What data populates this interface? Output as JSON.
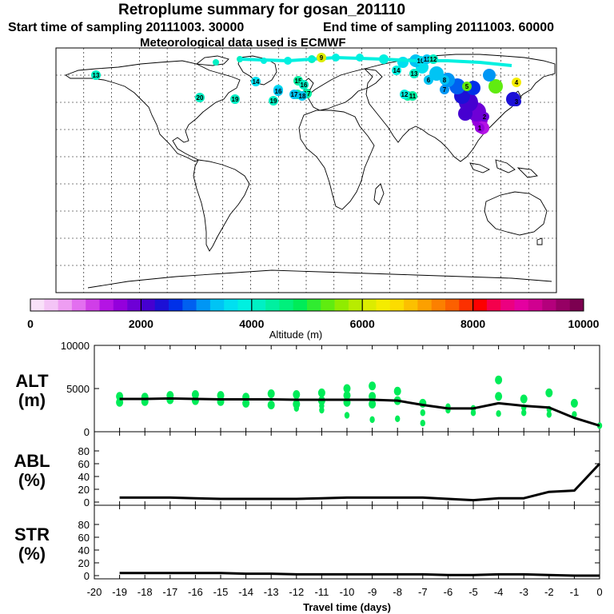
{
  "header": {
    "title": "Retroplume summary for gosan_201110",
    "start_label": "Start time of sampling 20111003. 30000",
    "end_label": "End time of sampling 20111003. 60000",
    "met_label": "Meteorological data used is ECMWF"
  },
  "colorbar": {
    "label": "Altitude (m)",
    "ticks": [
      "0",
      "2000",
      "4000",
      "6000",
      "8000",
      "10000"
    ],
    "colors": [
      "#f9e1f9",
      "#f4c4f6",
      "#ee9df2",
      "#e36ff0",
      "#d03ee8",
      "#b414e4",
      "#9400dc",
      "#6e00d6",
      "#4600d0",
      "#1c10d6",
      "#0030e8",
      "#0060f0",
      "#0096f4",
      "#00c4f4",
      "#00e0f0",
      "#00f0e0",
      "#00f0c4",
      "#00f0a0",
      "#00f07c",
      "#00ec58",
      "#30ec30",
      "#60ec10",
      "#90ec00",
      "#b8ec00",
      "#dcec00",
      "#f4ec00",
      "#fcdc00",
      "#fcc000",
      "#fca000",
      "#fc8000",
      "#fc6000",
      "#fc3000",
      "#fc0000",
      "#f4004c",
      "#ec0080",
      "#e400a0",
      "#d00090",
      "#b4007c",
      "#960064",
      "#7c0050"
    ]
  },
  "map": {
    "trajectory_labels": [
      {
        "t": "9",
        "c": "#dcec00"
      },
      {
        "t": "15",
        "c": "#00f0a0"
      },
      {
        "t": "16",
        "c": "#00f0c4"
      },
      {
        "t": "17",
        "c": "#00f0a0"
      },
      {
        "t": "18",
        "c": "#00f0a0"
      },
      {
        "t": "10",
        "c": "#00e0f0"
      },
      {
        "t": "11",
        "c": "#00c4f4"
      },
      {
        "t": "12",
        "c": "#00f0c4"
      },
      {
        "t": "13",
        "c": "#00f0c4"
      },
      {
        "t": "14",
        "c": "#00f0e0"
      },
      {
        "t": "8",
        "c": "#00c4f4"
      },
      {
        "t": "5",
        "c": "#60ec10"
      },
      {
        "t": "7",
        "c": "#0096f4"
      },
      {
        "t": "4",
        "c": "#f4ec00"
      },
      {
        "t": "3",
        "c": "#1c10d6"
      },
      {
        "t": "2",
        "c": "#6e00d6"
      },
      {
        "t": "1",
        "c": "#9400dc"
      },
      {
        "t": "6",
        "c": "#00c4f4"
      },
      {
        "t": "13",
        "c": "#00f0c4"
      },
      {
        "t": "19",
        "c": "#00f0c4"
      },
      {
        "t": "14",
        "c": "#00e0f0"
      },
      {
        "t": "15",
        "c": "#00e0f0"
      },
      {
        "t": "16",
        "c": "#00c4f4"
      },
      {
        "t": "17",
        "c": "#00c4f4"
      },
      {
        "t": "18",
        "c": "#00c4f4"
      },
      {
        "t": "19",
        "c": "#00f0c4"
      },
      {
        "t": "20",
        "c": "#00f0c4"
      },
      {
        "t": "10",
        "c": "#00f0a0"
      },
      {
        "t": "11",
        "c": "#00f0a0"
      },
      {
        "t": "12",
        "c": "#00f0e0"
      }
    ]
  },
  "chart_data": [
    {
      "type": "scatter",
      "name": "ALT",
      "ylabel": "ALT (m)",
      "ylabel_parts": [
        "ALT",
        "(m)"
      ],
      "ylim": [
        0,
        10000
      ],
      "yticks": [
        "0",
        "5000",
        "10000"
      ],
      "xlim": [
        -20,
        0
      ],
      "line": {
        "x": [
          -19,
          -18,
          -17,
          -16,
          -15,
          -14,
          -13,
          -12,
          -11,
          -10,
          -9,
          -8,
          -7,
          -6,
          -5,
          -4,
          -3,
          -2,
          -1,
          0
        ],
        "y": [
          3800,
          3800,
          3850,
          3800,
          3750,
          3750,
          3750,
          3700,
          3700,
          3700,
          3700,
          3600,
          3100,
          2700,
          2700,
          3300,
          3000,
          2800,
          1600,
          700
        ]
      },
      "points": [
        {
          "x": -19,
          "y": 4100
        },
        {
          "x": -19,
          "y": 3400
        },
        {
          "x": -18,
          "y": 4000
        },
        {
          "x": -18,
          "y": 3500
        },
        {
          "x": -17,
          "y": 4200
        },
        {
          "x": -17,
          "y": 3700
        },
        {
          "x": -16,
          "y": 4300
        },
        {
          "x": -16,
          "y": 3600
        },
        {
          "x": -15,
          "y": 4200
        },
        {
          "x": -15,
          "y": 3500
        },
        {
          "x": -14,
          "y": 4000
        },
        {
          "x": -14,
          "y": 3300
        },
        {
          "x": -13,
          "y": 4400
        },
        {
          "x": -13,
          "y": 3100
        },
        {
          "x": -12,
          "y": 4300
        },
        {
          "x": -12,
          "y": 3200
        },
        {
          "x": -12,
          "y": 2700
        },
        {
          "x": -11,
          "y": 4500
        },
        {
          "x": -11,
          "y": 3600
        },
        {
          "x": -11,
          "y": 3000
        },
        {
          "x": -11,
          "y": 2500
        },
        {
          "x": -10,
          "y": 5000
        },
        {
          "x": -10,
          "y": 4200
        },
        {
          "x": -10,
          "y": 3400
        },
        {
          "x": -10,
          "y": 1900
        },
        {
          "x": -9,
          "y": 5300
        },
        {
          "x": -9,
          "y": 4100
        },
        {
          "x": -9,
          "y": 3200
        },
        {
          "x": -9,
          "y": 1400
        },
        {
          "x": -8,
          "y": 4700
        },
        {
          "x": -8,
          "y": 3600
        },
        {
          "x": -8,
          "y": 1500
        },
        {
          "x": -7,
          "y": 3300
        },
        {
          "x": -7,
          "y": 2200
        },
        {
          "x": -7,
          "y": 1000
        },
        {
          "x": -6,
          "y": 2900
        },
        {
          "x": -6,
          "y": 2500
        },
        {
          "x": -5,
          "y": 2700
        },
        {
          "x": -5,
          "y": 2200
        },
        {
          "x": -4,
          "y": 6000
        },
        {
          "x": -4,
          "y": 4100
        },
        {
          "x": -4,
          "y": 2100
        },
        {
          "x": -3,
          "y": 3800
        },
        {
          "x": -3,
          "y": 2800
        },
        {
          "x": -3,
          "y": 2200
        },
        {
          "x": -2,
          "y": 4500
        },
        {
          "x": -2,
          "y": 2600
        },
        {
          "x": -2,
          "y": 2000
        },
        {
          "x": -1,
          "y": 3300
        },
        {
          "x": -1,
          "y": 2000
        },
        {
          "x": 0,
          "y": 700
        }
      ],
      "point_color": "#00ec58"
    },
    {
      "type": "line",
      "name": "ABL",
      "ylabel": "ABL (%)",
      "ylabel_parts": [
        "ABL",
        "(%)"
      ],
      "ylim": [
        0,
        100
      ],
      "yticks": [
        "0",
        "20",
        "40",
        "60",
        "80"
      ],
      "xlim": [
        -20,
        0
      ],
      "x": [
        -19,
        -18,
        -17,
        -16,
        -15,
        -14,
        -13,
        -12,
        -11,
        -10,
        -9,
        -8,
        -7,
        -6,
        -5,
        -4,
        -3,
        -2,
        -1,
        0
      ],
      "y": [
        7,
        7,
        7,
        6,
        5,
        5,
        5,
        5,
        6,
        7,
        7,
        7,
        7,
        5,
        3,
        6,
        6,
        16,
        18,
        60
      ]
    },
    {
      "type": "line",
      "name": "STR",
      "ylabel": "STR (%)",
      "ylabel_parts": [
        "STR",
        "(%)"
      ],
      "ylim": [
        0,
        100
      ],
      "yticks": [
        "0",
        "20",
        "40",
        "60",
        "80"
      ],
      "xlim": [
        -20,
        0
      ],
      "xticks": [
        "-20",
        "-19",
        "-18",
        "-17",
        "-16",
        "-15",
        "-14",
        "-13",
        "-12",
        "-11",
        "-10",
        "-9",
        "-8",
        "-7",
        "-6",
        "-5",
        "-4",
        "-3",
        "-2",
        "-1",
        "0"
      ],
      "xlabel": "Travel time (days)",
      "x": [
        -19,
        -18,
        -17,
        -16,
        -15,
        -14,
        -13,
        -12,
        -11,
        -10,
        -9,
        -8,
        -7,
        -6,
        -5,
        -4,
        -3,
        -2,
        -1,
        0
      ],
      "y": [
        4,
        4,
        4,
        4,
        4,
        3,
        3,
        2,
        2,
        2,
        2,
        2,
        2,
        1,
        1,
        2,
        2,
        1,
        0,
        0
      ]
    }
  ]
}
